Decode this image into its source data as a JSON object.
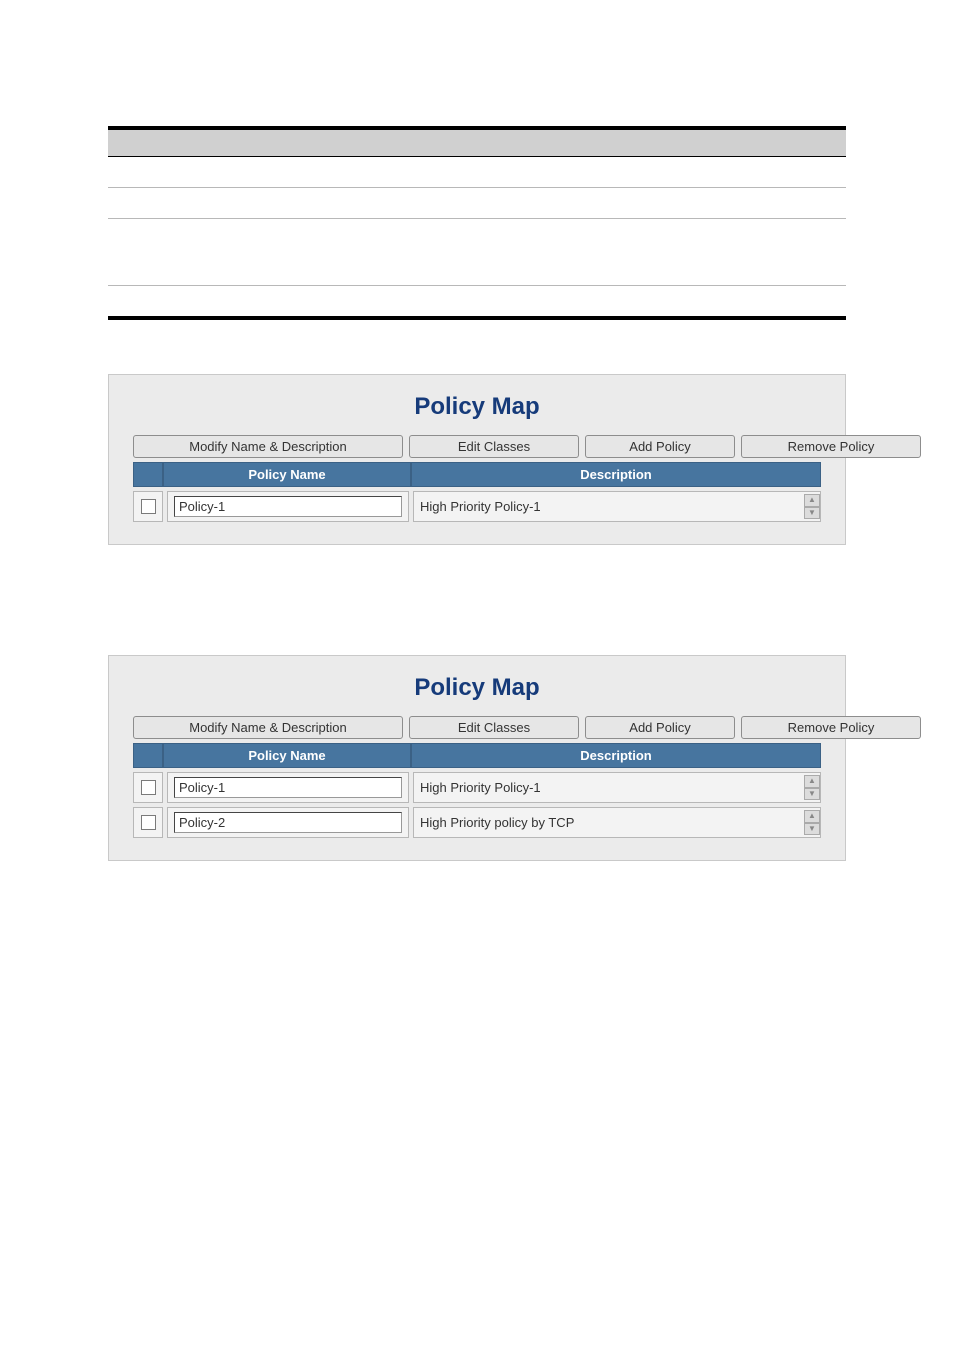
{
  "colors": {
    "accent": "#163b7a",
    "header_row_bg": "#47759f",
    "panel_bg": "#ebebeb",
    "rule": "#000000"
  },
  "policy_map": {
    "title": "Policy Map",
    "buttons": {
      "modify": "Modify Name & Description",
      "edit_classes": "Edit Classes",
      "add_policy": "Add Policy",
      "remove_policy": "Remove Policy"
    },
    "columns": {
      "name": "Policy Name",
      "description": "Description"
    }
  },
  "panel1_rows": [
    {
      "name": "Policy-1",
      "description": "High Priority Policy-1"
    }
  ],
  "panel2_rows": [
    {
      "name": "Policy-1",
      "description": "High Priority Policy-1"
    },
    {
      "name": "Policy-2",
      "description": "High Priority policy by TCP"
    }
  ]
}
